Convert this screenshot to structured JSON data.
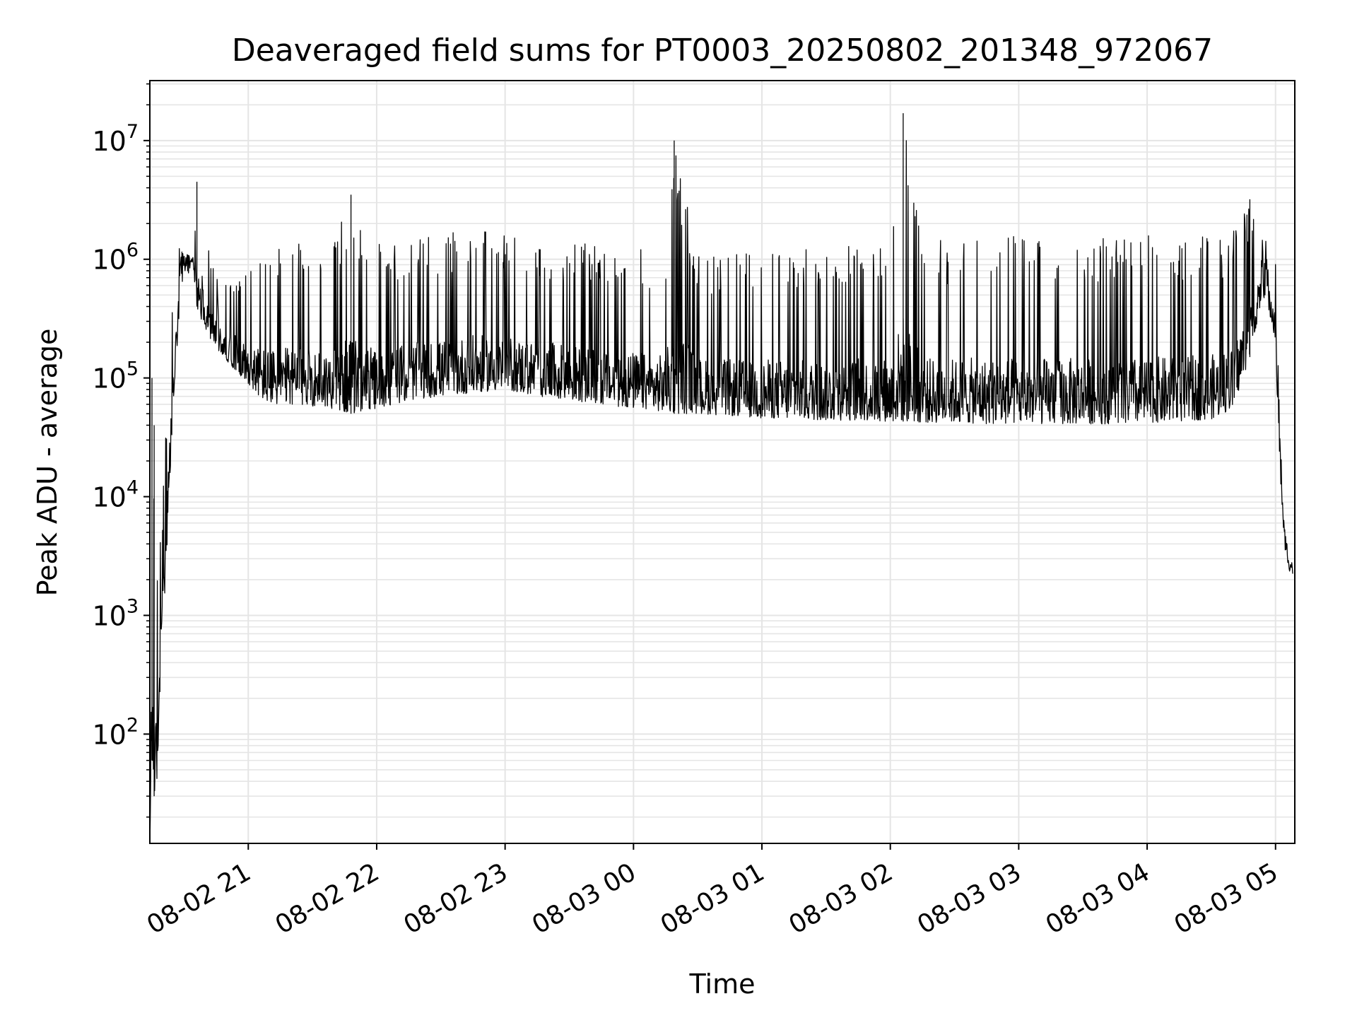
{
  "chart_data": {
    "type": "line",
    "title": "Deaveraged field sums for PT0003_20250802_201348_972067",
    "xlabel": "Time",
    "ylabel": "Peak ADU - average",
    "yscale": "log",
    "ylim": [
      12,
      32000000
    ],
    "xlim": [
      "2025-08-02 20:14",
      "2025-08-03 05:09"
    ],
    "grid": "on (major and minor)",
    "line_color": "#000000",
    "grid_color": "#e5e5e5",
    "x_ticks": [
      {
        "x": "2025-08-02 21:00",
        "label": "08-02 21"
      },
      {
        "x": "2025-08-02 22:00",
        "label": "08-02 22"
      },
      {
        "x": "2025-08-02 23:00",
        "label": "08-02 23"
      },
      {
        "x": "2025-08-03 00:00",
        "label": "08-03 00"
      },
      {
        "x": "2025-08-03 01:00",
        "label": "08-03 01"
      },
      {
        "x": "2025-08-03 02:00",
        "label": "08-03 02"
      },
      {
        "x": "2025-08-03 03:00",
        "label": "08-03 03"
      },
      {
        "x": "2025-08-03 04:00",
        "label": "08-03 04"
      },
      {
        "x": "2025-08-03 05:00",
        "label": "08-03 05"
      }
    ],
    "y_ticks": [
      {
        "y": 100,
        "base": "10",
        "exp": "2"
      },
      {
        "y": 1000,
        "base": "10",
        "exp": "3"
      },
      {
        "y": 10000,
        "base": "10",
        "exp": "4"
      },
      {
        "y": 100000,
        "base": "10",
        "exp": "5"
      },
      {
        "y": 1000000,
        "base": "10",
        "exp": "6"
      },
      {
        "y": 10000000,
        "base": "10",
        "exp": "7"
      }
    ],
    "series": [
      {
        "x": [
          "2025-08-02 20:14",
          "2025-08-02 20:15",
          "2025-08-02 20:16",
          "2025-08-02 20:17",
          "2025-08-02 20:19",
          "2025-08-02 20:21",
          "2025-08-02 20:23",
          "2025-08-02 20:25",
          "2025-08-02 20:28",
          "2025-08-02 20:31",
          "2025-08-02 20:34",
          "2025-08-02 20:36",
          "2025-08-02 20:37",
          "2025-08-02 20:38",
          "2025-08-02 20:40",
          "2025-08-02 20:45",
          "2025-08-02 20:50",
          "2025-08-02 20:55",
          "2025-08-02 21:00",
          "2025-08-02 21:05",
          "2025-08-02 21:10",
          "2025-08-02 21:20",
          "2025-08-02 21:30",
          "2025-08-02 21:40",
          "2025-08-02 21:48",
          "2025-08-02 22:00",
          "2025-08-02 22:15",
          "2025-08-02 22:30",
          "2025-08-02 22:45",
          "2025-08-02 23:00",
          "2025-08-02 23:15",
          "2025-08-02 23:30",
          "2025-08-02 23:45",
          "2025-08-03 00:00",
          "2025-08-03 00:15",
          "2025-08-03 00:19",
          "2025-08-03 00:30",
          "2025-08-03 00:45",
          "2025-08-03 01:00",
          "2025-08-03 01:15",
          "2025-08-03 01:30",
          "2025-08-03 01:45",
          "2025-08-03 02:00",
          "2025-08-03 02:06",
          "2025-08-03 02:15",
          "2025-08-03 02:30",
          "2025-08-03 02:45",
          "2025-08-03 03:00",
          "2025-08-03 03:15",
          "2025-08-03 03:30",
          "2025-08-03 03:45",
          "2025-08-03 04:00",
          "2025-08-03 04:15",
          "2025-08-03 04:30",
          "2025-08-03 04:40",
          "2025-08-03 04:48",
          "2025-08-03 04:54",
          "2025-08-03 04:58",
          "2025-08-03 05:00",
          "2025-08-03 05:02",
          "2025-08-03 05:04",
          "2025-08-03 05:06",
          "2025-08-03 05:08"
        ],
        "low": [
          12,
          60,
          30,
          25,
          300,
          1500,
          8000,
          60000,
          400000,
          700000,
          900000,
          400000,
          350000,
          300000,
          250000,
          180000,
          140000,
          110000,
          90000,
          70000,
          60000,
          60000,
          58000,
          55000,
          50000,
          55000,
          65000,
          70000,
          75000,
          80000,
          70000,
          65000,
          60000,
          55000,
          52000,
          50000,
          50000,
          48000,
          46000,
          45000,
          44000,
          44000,
          43000,
          43000,
          42000,
          42000,
          41000,
          41000,
          41000,
          41000,
          41000,
          42000,
          43000,
          45000,
          55000,
          150000,
          500000,
          300000,
          200000,
          15000,
          4000,
          2500,
          2000
        ],
        "high": [
          12,
          100000,
          40000,
          2000,
          5000,
          20000,
          200000,
          800000,
          1300000,
          1200000,
          1000000,
          4500000,
          900000,
          700000,
          1500000,
          700000,
          600000,
          900000,
          800000,
          1100000,
          1300000,
          1400000,
          1500000,
          1500000,
          3500000,
          1400000,
          1500000,
          1600000,
          1800000,
          1600000,
          1500000,
          1400000,
          1300000,
          1300000,
          1200000,
          10000000,
          1100000,
          1100000,
          1200000,
          1200000,
          1300000,
          1400000,
          1500000,
          17000000,
          1500000,
          1500000,
          1600000,
          1600000,
          1600000,
          1600000,
          1600000,
          1600000,
          1600000,
          1600000,
          1700000,
          3200000,
          1500000,
          1400000,
          1200000,
          40000,
          6000,
          3500,
          3000
        ]
      }
    ]
  }
}
